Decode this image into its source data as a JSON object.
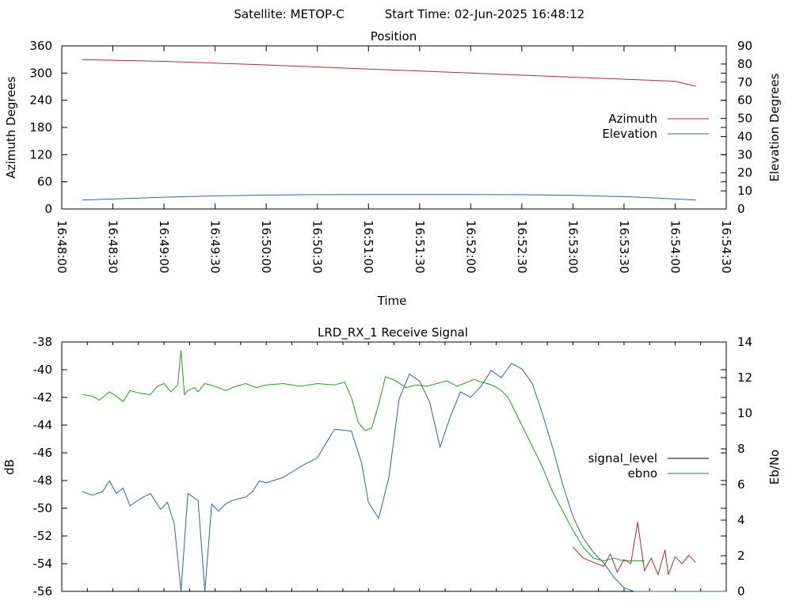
{
  "header": {
    "satellite_label": "Satellite: METOP-C",
    "start_time_label": "Start Time: 02-Jun-2025 16:48:12"
  },
  "chart_data": [
    {
      "type": "line",
      "title": "Position",
      "xlabel": "Time",
      "ylabel": "Azimuth Degrees",
      "y2label": "Elevation Degrees",
      "x_ticks": [
        "16:48:00",
        "16:48:30",
        "16:49:00",
        "16:49:30",
        "16:50:00",
        "16:50:30",
        "16:51:00",
        "16:51:30",
        "16:52:00",
        "16:52:30",
        "16:53:00",
        "16:53:30",
        "16:54:00",
        "16:54:30"
      ],
      "xlim": [
        0,
        390
      ],
      "ylim": [
        0,
        360
      ],
      "y_ticks": [
        0,
        60,
        120,
        180,
        240,
        300,
        360
      ],
      "y2lim": [
        0,
        90
      ],
      "y2_ticks": [
        0,
        10,
        20,
        30,
        40,
        50,
        60,
        70,
        80,
        90
      ],
      "legend_position": "right",
      "grid": false,
      "series": [
        {
          "name": "Azimuth",
          "axis": "left",
          "color": "#a0303c",
          "x": [
            12,
            60,
            120,
            180,
            240,
            300,
            360,
            372
          ],
          "y": [
            330,
            326,
            318,
            309,
            300,
            291,
            282,
            271
          ]
        },
        {
          "name": "Elevation",
          "axis": "right",
          "color": "#3264a0",
          "x": [
            12,
            30,
            60,
            90,
            120,
            150,
            180,
            210,
            240,
            270,
            300,
            330,
            350,
            372
          ],
          "y": [
            5,
            5.5,
            6.5,
            7.2,
            7.7,
            7.9,
            8,
            8,
            8,
            7.9,
            7.5,
            6.8,
            6,
            5
          ]
        }
      ]
    },
    {
      "type": "line",
      "title": "LRD_RX_1 Receive Signal",
      "ylabel": "dB",
      "y2label": "Eb/No",
      "xlim": [
        0,
        390
      ],
      "ylim": [
        -56,
        -38
      ],
      "y_ticks": [
        -56,
        -54,
        -52,
        -50,
        -48,
        -46,
        -44,
        -42,
        -40,
        -38
      ],
      "y2lim": [
        0,
        14
      ],
      "y2_ticks": [
        0,
        2,
        4,
        6,
        8,
        10,
        12,
        14
      ],
      "legend_position": "right",
      "grid": false,
      "series": [
        {
          "name": "signal_level",
          "axis": "left",
          "color": "#000000",
          "x": [],
          "y": []
        },
        {
          "name": "ebno",
          "axis": "right",
          "color": "#3264a0",
          "x": [
            12,
            18,
            24,
            28,
            32,
            36,
            40,
            46,
            52,
            58,
            62,
            66,
            70,
            74,
            80,
            84,
            88,
            92,
            96,
            100,
            104,
            108,
            112,
            116,
            120,
            130,
            140,
            150,
            160,
            170,
            176,
            180,
            186,
            192,
            198,
            204,
            210,
            216,
            222,
            228,
            234,
            240,
            246,
            252,
            258,
            264,
            270,
            276,
            282,
            288,
            294,
            300,
            306,
            312,
            318,
            324,
            330,
            336,
            342,
            348,
            354,
            360,
            366,
            372,
            378,
            384,
            390
          ],
          "y": [
            5.6,
            5.4,
            5.6,
            6.2,
            5.5,
            5.8,
            4.8,
            5.2,
            5.5,
            4.6,
            5.0,
            3.8,
            0.0,
            5.5,
            5.1,
            0.0,
            4.9,
            4.5,
            4.9,
            5.1,
            5.2,
            5.3,
            5.6,
            6.2,
            6.1,
            6.4,
            7.0,
            7.5,
            9.1,
            9.0,
            7.2,
            5.0,
            4.1,
            6.4,
            10.8,
            12.2,
            11.8,
            10.6,
            8.1,
            9.8,
            11.2,
            10.9,
            11.5,
            12.4,
            12.0,
            12.8,
            12.5,
            11.7,
            10.0,
            8.1,
            6.0,
            4.2,
            3.0,
            2.2,
            1.6,
            0.8,
            0.2,
            0.0,
            0.0,
            0.0,
            0.0,
            0.0,
            0.0,
            0.0,
            0.0,
            0.0,
            0.0
          ]
        },
        {
          "name": "",
          "axis": "left",
          "color": "#1fa01f",
          "x": [
            12,
            18,
            22,
            28,
            32,
            36,
            40,
            46,
            52,
            56,
            60,
            64,
            68,
            70,
            72,
            74,
            78,
            80,
            84,
            90,
            96,
            102,
            108,
            114,
            120,
            130,
            140,
            150,
            160,
            166,
            170,
            174,
            178,
            182,
            186,
            190,
            196,
            202,
            208,
            214,
            220,
            226,
            232,
            238,
            242,
            246,
            250,
            254,
            258,
            262,
            266,
            270,
            276,
            282,
            288,
            294,
            300,
            306,
            312,
            318,
            324,
            330,
            336,
            342
          ],
          "y": [
            -41.8,
            -41.9,
            -42.2,
            -41.6,
            -41.9,
            -42.3,
            -41.5,
            -41.7,
            -41.8,
            -41.2,
            -41.0,
            -41.6,
            -41.1,
            -38.6,
            -41.8,
            -41.5,
            -41.3,
            -41.6,
            -41.0,
            -41.2,
            -41.5,
            -41.2,
            -41.0,
            -41.3,
            -41.1,
            -41.0,
            -41.2,
            -41.0,
            -41.1,
            -40.9,
            -42.0,
            -43.8,
            -44.4,
            -44.2,
            -42.5,
            -40.5,
            -40.8,
            -41.3,
            -41.1,
            -41.2,
            -41.0,
            -40.8,
            -41.2,
            -40.9,
            -40.7,
            -40.9,
            -41.0,
            -41.2,
            -41.5,
            -42.0,
            -43.0,
            -44.0,
            -45.5,
            -47.0,
            -48.8,
            -50.2,
            -51.6,
            -52.8,
            -53.6,
            -53.8,
            -53.6,
            -53.8,
            -53.8,
            -53.8
          ]
        },
        {
          "name": "",
          "axis": "left",
          "color": "#a0303c",
          "x": [
            300,
            306,
            312,
            318,
            322,
            326,
            330,
            334,
            338,
            342,
            346,
            350,
            354,
            356,
            360,
            364,
            368,
            372
          ],
          "y": [
            -52.8,
            -53.6,
            -53.9,
            -54.2,
            -53.3,
            -54.6,
            -53.7,
            -54.0,
            -51.0,
            -54.5,
            -53.6,
            -54.8,
            -53.0,
            -54.8,
            -53.5,
            -54.0,
            -53.4,
            -53.9
          ]
        }
      ]
    }
  ]
}
